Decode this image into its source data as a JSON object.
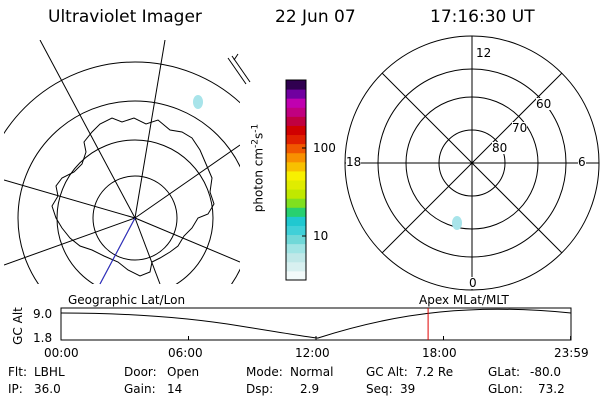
{
  "header": {
    "instrument": "Ultraviolet Imager",
    "date": "22 Jun 07",
    "time": "17:16:30 UT"
  },
  "colorbar": {
    "unit_prefix": "photon cm",
    "unit_exp1": "-2",
    "unit_mid": "s",
    "unit_exp2": "-1",
    "tick_high": "100",
    "tick_low": "10",
    "colors": [
      "#f2fafa",
      "#d8f0f0",
      "#c0e8e8",
      "#a0e4e4",
      "#70d8d8",
      "#40d0d8",
      "#20c8d0",
      "#28d070",
      "#80e020",
      "#c0e800",
      "#e0ec00",
      "#f8f000",
      "#f8c000",
      "#f89000",
      "#f05800",
      "#e02000",
      "#d00000",
      "#c00040",
      "#c00080",
      "#c000b0",
      "#7000a0",
      "#300050"
    ]
  },
  "geo_map": {
    "label": "Geographic Lat/Lon"
  },
  "polar_plot": {
    "label": "Apex MLat/MLT",
    "mlt_12": "12",
    "mlt_18": "18",
    "mlt_6": "6",
    "mlt_0": "0",
    "lat_60": "60",
    "lat_70": "70",
    "lat_80": "80"
  },
  "altitude_plot": {
    "ylabel": "GC Alt",
    "ytick_high": "9.0",
    "ytick_low": "1.8",
    "xticks": [
      "00:00",
      "06:00",
      "12:00",
      "18:00",
      "23:59"
    ],
    "current_time_hours": 17.275,
    "current_marker_color": "#e00000"
  },
  "status": {
    "flt_label": "Flt:",
    "flt_value": "LBHL",
    "ip_label": "IP:",
    "ip_value": "36.0",
    "door_label": "Door:",
    "door_value": "Open",
    "gain_label": "Gain:",
    "gain_value": "14",
    "mode_label": "Mode:",
    "mode_value": "Normal",
    "dsp_label": "Dsp:",
    "dsp_value": "2.9",
    "gcalt_label": "GC Alt:",
    "gcalt_value": "7.2 Re",
    "seq_label": "Seq:",
    "seq_value": "39",
    "glat_label": "GLat:",
    "glat_value": "-80.0",
    "glon_label": "GLon:",
    "glon_value": "73.2"
  }
}
